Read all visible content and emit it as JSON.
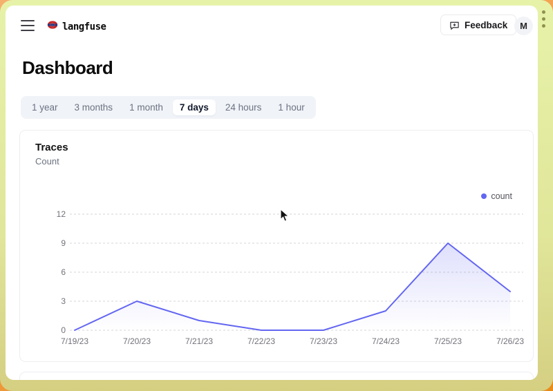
{
  "topbar": {
    "brand": "langfuse",
    "feedback_label": "Feedback",
    "avatar_initial": "M"
  },
  "page": {
    "title": "Dashboard"
  },
  "time_tabs": {
    "items": [
      {
        "label": "1 year",
        "selected": false
      },
      {
        "label": "3 months",
        "selected": false
      },
      {
        "label": "1 month",
        "selected": false
      },
      {
        "label": "7 days",
        "selected": true
      },
      {
        "label": "24 hours",
        "selected": false
      },
      {
        "label": "1 hour",
        "selected": false
      }
    ]
  },
  "card": {
    "title": "Traces",
    "subtitle": "Count"
  },
  "chart_data": {
    "type": "area",
    "title": "Traces",
    "ylabel": "Count",
    "categories": [
      "7/19/23",
      "7/20/23",
      "7/21/23",
      "7/22/23",
      "7/23/23",
      "7/24/23",
      "7/25/23",
      "7/26/23"
    ],
    "values": [
      0,
      3,
      1,
      0,
      0,
      2,
      9,
      4
    ],
    "ylim": [
      0,
      12
    ],
    "yticks": [
      0,
      3,
      6,
      9,
      12
    ],
    "grid": "dashed-horizontal",
    "legend_position": "top-right",
    "legend_label": "count",
    "line_color": "#6366f1",
    "area_top_opacity": 0.28,
    "grid_color": "#d4d4d8",
    "tick_color": "#71717a"
  },
  "colors": {
    "frame_top": "#e7f2a9",
    "frame_bottom": "#d5cf82",
    "page_bg": "#f09c42",
    "accent": "#6366f1"
  }
}
